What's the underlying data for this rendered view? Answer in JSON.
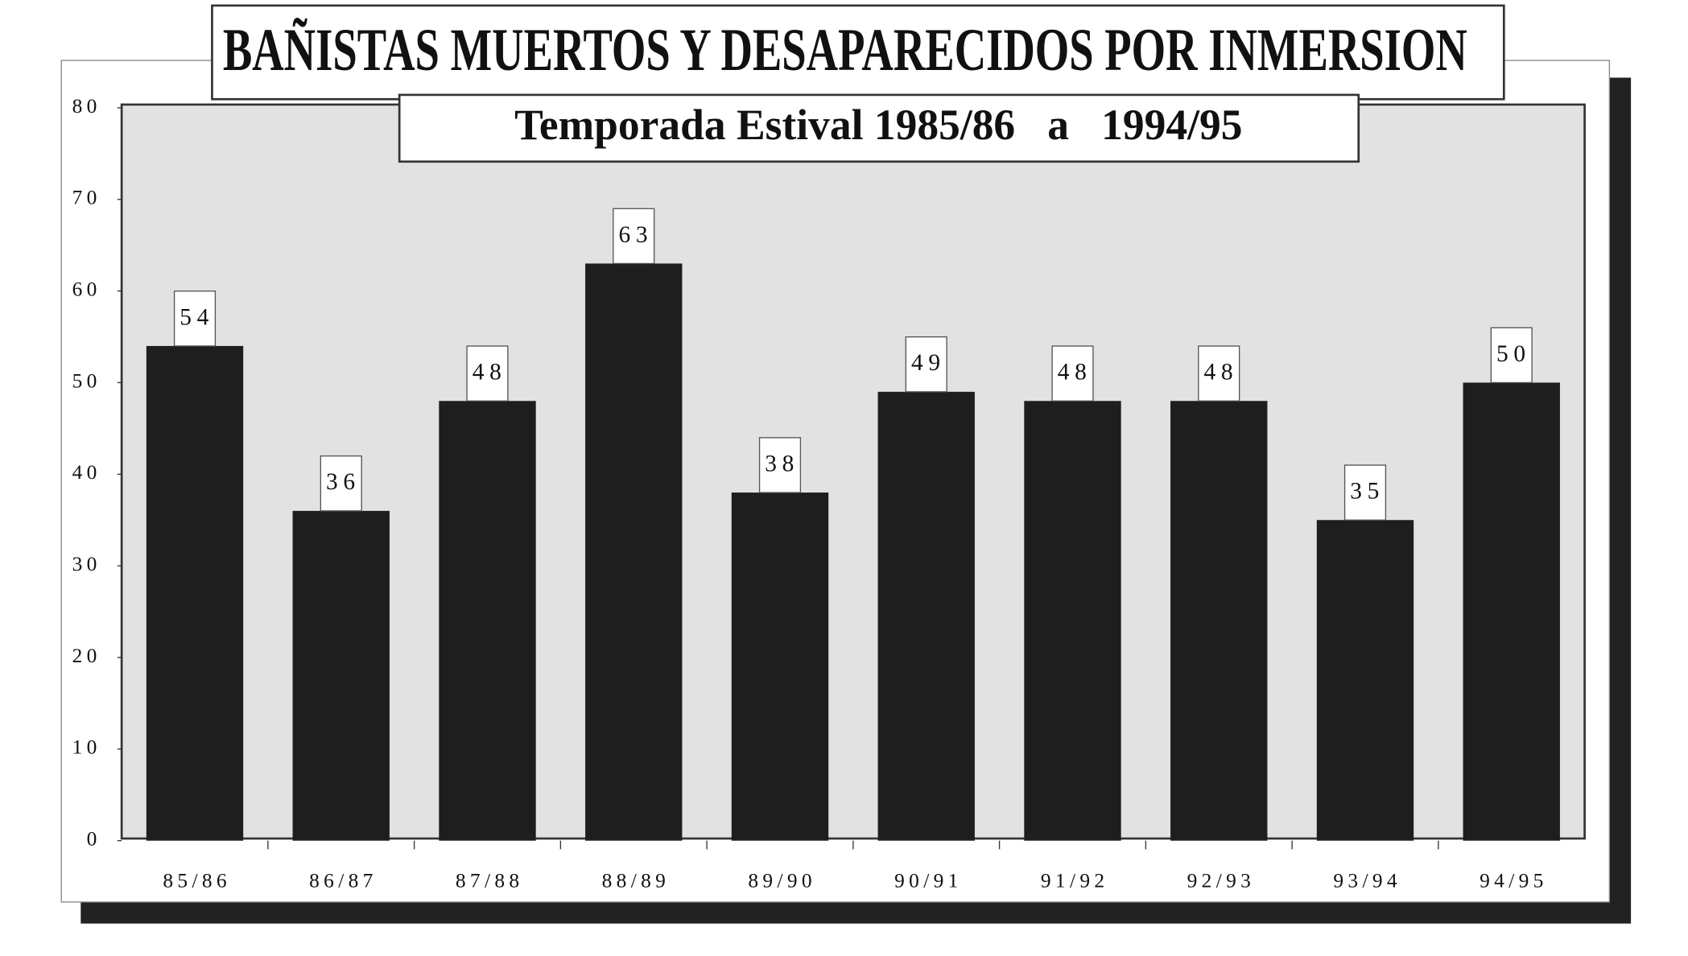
{
  "chart_data": {
    "type": "bar",
    "title": "BAÑISTAS MUERTOS Y DESAPARECIDOS POR INMERSION",
    "subtitle": "Temporada Estival 1985/86   a   1994/95",
    "categories": [
      "85/86",
      "86/87",
      "87/88",
      "88/89",
      "89/90",
      "90/91",
      "91/92",
      "92/93",
      "93/94",
      "94/95"
    ],
    "values": [
      54,
      36,
      48,
      63,
      38,
      49,
      48,
      48,
      35,
      50
    ],
    "color": "#1e1e1e",
    "ylim": [
      0,
      80
    ],
    "yticks": [
      0,
      10,
      20,
      30,
      40,
      50,
      60,
      70,
      80
    ],
    "grid": false
  }
}
